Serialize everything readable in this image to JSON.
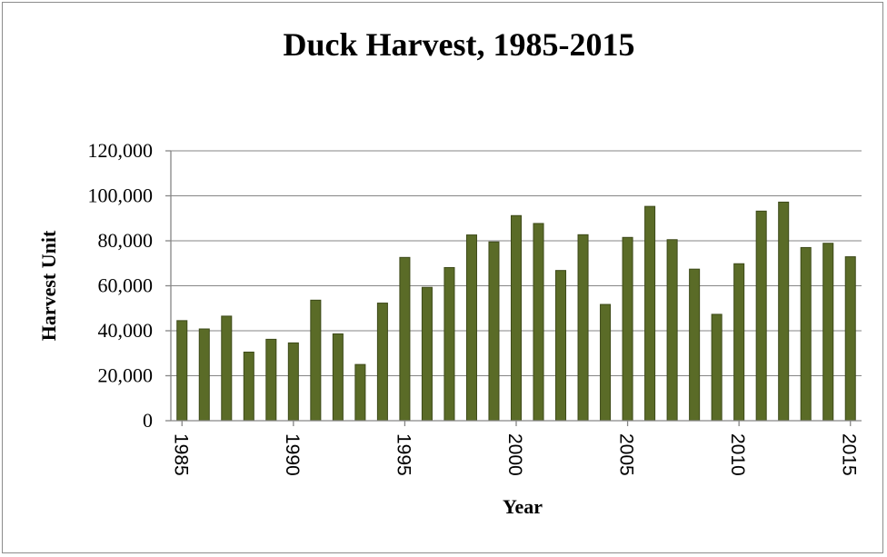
{
  "chart_data": {
    "type": "bar",
    "title": "Duck Harvest, 1985-2015",
    "xlabel": "Year",
    "ylabel": "Harvest Unit",
    "categories": [
      1985,
      1986,
      1987,
      1988,
      1989,
      1990,
      1991,
      1992,
      1993,
      1994,
      1995,
      1996,
      1997,
      1998,
      1999,
      2000,
      2001,
      2002,
      2003,
      2004,
      2005,
      2006,
      2007,
      2008,
      2009,
      2010,
      2011,
      2012,
      2013,
      2014,
      2015
    ],
    "values": [
      44500,
      40800,
      46500,
      30500,
      36200,
      34600,
      53600,
      38600,
      25000,
      52300,
      72600,
      59300,
      68100,
      82600,
      79500,
      91200,
      87700,
      66800,
      82700,
      51700,
      81500,
      95300,
      80500,
      67400,
      47300,
      69800,
      93200,
      97200,
      77000,
      78900,
      72900
    ],
    "x_tick_labels": [
      "1985",
      "1990",
      "1995",
      "2000",
      "2005",
      "2010",
      "2015"
    ],
    "y_tick_labels": [
      "0",
      "20,000",
      "40,000",
      "60,000",
      "80,000",
      "100,000",
      "120,000"
    ],
    "ylim": [
      0,
      120000
    ],
    "grid": true,
    "legend": "none",
    "bar_color": "#5a6b27"
  }
}
